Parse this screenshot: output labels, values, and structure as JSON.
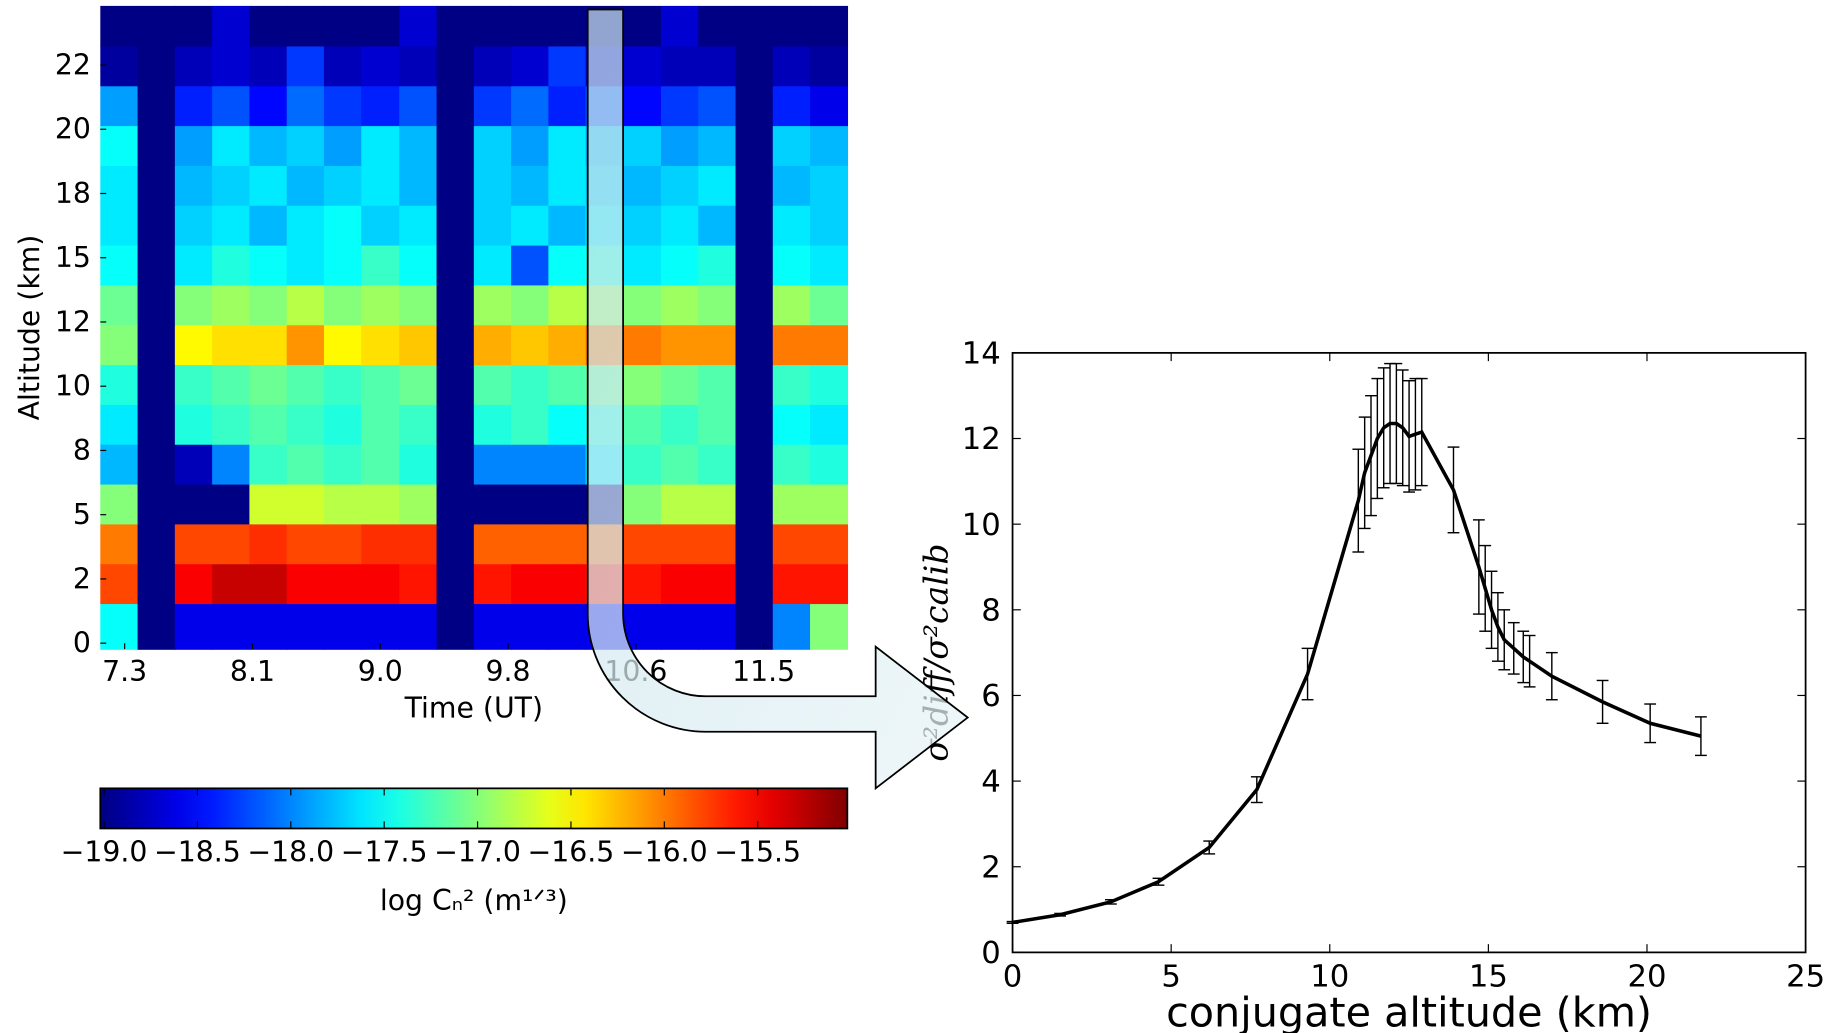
{
  "chart_data": [
    {
      "type": "heatmap",
      "xlabel": "Time (UT)",
      "ylabel": "Altitude (km)",
      "x": [
        7.24,
        7.49,
        7.73,
        7.98,
        8.22,
        8.47,
        8.71,
        8.96,
        9.21,
        9.45,
        9.7,
        9.94,
        10.19,
        10.43,
        10.68,
        10.93,
        11.17,
        11.42,
        11.66,
        11.91
      ],
      "y": [
        0.8,
        2.3,
        3.9,
        5.4,
        7.0,
        8.5,
        10.1,
        11.6,
        13.2,
        14.7,
        16.3,
        17.8,
        19.4,
        20.9,
        22.5,
        24.0
      ],
      "z": [
        [
          -17.5,
          -19,
          -18.6,
          -18.6,
          -18.6,
          -18.6,
          -18.6,
          -18.6,
          -18.6,
          -19,
          -18.6,
          -18.6,
          -18.6,
          -18.6,
          -18.6,
          -18.6,
          -18.6,
          -19,
          -18.0,
          -17.0
        ],
        [
          -15.8,
          -19,
          -15.5,
          -15.3,
          -15.3,
          -15.5,
          -15.5,
          -15.5,
          -15.6,
          -19,
          -15.6,
          -15.5,
          -15.5,
          -15.6,
          -15.6,
          -15.5,
          -15.5,
          -19,
          -15.6,
          -15.6
        ],
        [
          -16.0,
          -19,
          -15.8,
          -15.8,
          -15.7,
          -15.8,
          -15.8,
          -15.7,
          -15.7,
          -19,
          -15.9,
          -15.9,
          -15.9,
          -15.9,
          -15.8,
          -15.8,
          -15.8,
          -19,
          -15.8,
          -15.8
        ],
        [
          -17.0,
          -19,
          -19,
          -19,
          -16.7,
          -16.7,
          -16.8,
          -16.8,
          -16.9,
          -19,
          -19,
          -19,
          -19,
          -19,
          -17.0,
          -16.8,
          -16.8,
          -19,
          -16.9,
          -16.9
        ],
        [
          -17.8,
          -19,
          -18.8,
          -18.0,
          -17.3,
          -17.2,
          -17.3,
          -17.2,
          -17.4,
          -19,
          -18.0,
          -18.0,
          -18.0,
          -17.6,
          -17.3,
          -17.2,
          -17.3,
          -19,
          -17.3,
          -17.4
        ],
        [
          -17.6,
          -19,
          -17.4,
          -17.3,
          -17.2,
          -17.3,
          -17.4,
          -17.2,
          -17.3,
          -19,
          -17.4,
          -17.3,
          -17.5,
          -17.4,
          -17.2,
          -17.3,
          -17.2,
          -19,
          -17.5,
          -17.6
        ],
        [
          -17.4,
          -19,
          -17.3,
          -17.2,
          -17.1,
          -17.2,
          -17.3,
          -17.2,
          -17.1,
          -19,
          -17.2,
          -17.3,
          -17.2,
          -17.1,
          -17.0,
          -17.1,
          -17.2,
          -19,
          -17.3,
          -17.4
        ],
        [
          -17.0,
          -19,
          -16.5,
          -16.4,
          -16.4,
          -16.1,
          -16.5,
          -16.4,
          -16.3,
          -19,
          -16.2,
          -16.3,
          -16.2,
          -16.0,
          -16.0,
          -16.1,
          -16.1,
          -19,
          -16.0,
          -16.0
        ],
        [
          -17.1,
          -19,
          -17.0,
          -16.9,
          -17.0,
          -16.8,
          -17.0,
          -16.9,
          -17.0,
          -19,
          -16.9,
          -17.0,
          -16.8,
          -16.9,
          -17.0,
          -16.9,
          -17.0,
          -19,
          -16.9,
          -17.1
        ],
        [
          -17.5,
          -19,
          -17.6,
          -17.4,
          -17.5,
          -17.6,
          -17.5,
          -17.3,
          -17.5,
          -19,
          -17.6,
          -18.2,
          -17.5,
          -17.4,
          -17.6,
          -17.5,
          -17.4,
          -19,
          -17.5,
          -17.6
        ],
        [
          -17.6,
          -19,
          -17.7,
          -17.6,
          -17.8,
          -17.6,
          -17.5,
          -17.7,
          -17.6,
          -19,
          -17.7,
          -17.6,
          -17.8,
          -17.6,
          -17.7,
          -17.6,
          -17.8,
          -19,
          -17.6,
          -17.7
        ],
        [
          -17.6,
          -19,
          -17.8,
          -17.7,
          -17.6,
          -17.8,
          -17.7,
          -17.6,
          -17.8,
          -19,
          -17.7,
          -17.8,
          -17.6,
          -17.7,
          -17.8,
          -17.7,
          -17.6,
          -19,
          -17.8,
          -17.7
        ],
        [
          -17.5,
          -19,
          -17.9,
          -17.6,
          -17.8,
          -17.7,
          -17.9,
          -17.6,
          -17.8,
          -19,
          -17.7,
          -17.9,
          -17.6,
          -17.8,
          -17.7,
          -17.9,
          -17.8,
          -19,
          -17.7,
          -17.8
        ],
        [
          -17.9,
          -19,
          -18.4,
          -18.2,
          -18.5,
          -18.1,
          -18.3,
          -18.4,
          -18.2,
          -19,
          -18.3,
          -18.1,
          -18.4,
          -18.2,
          -18.5,
          -18.3,
          -18.2,
          -19,
          -18.4,
          -18.6
        ],
        [
          -18.9,
          -19,
          -18.8,
          -18.7,
          -18.8,
          -18.3,
          -18.8,
          -18.7,
          -18.8,
          -19,
          -18.8,
          -18.7,
          -18.3,
          -18.8,
          -18.7,
          -18.8,
          -18.8,
          -19,
          -18.8,
          -18.9
        ],
        [
          -19,
          -19,
          -19,
          -18.7,
          -19,
          -19,
          -19,
          -19,
          -18.7,
          -19,
          -19,
          -19,
          -19,
          -19,
          -19,
          -18.7,
          -19,
          -19,
          -19,
          -19
        ]
      ],
      "xlim": [
        7.12,
        12.03
      ],
      "ylim": [
        -0.23,
        24.8
      ],
      "xticks": [
        {
          "value": 7.28,
          "label": "7.3"
        },
        {
          "value": 8.12,
          "label": "8.1"
        },
        {
          "value": 8.96,
          "label": "9.0"
        },
        {
          "value": 9.8,
          "label": "9.8"
        },
        {
          "value": 10.64,
          "label": "10.6"
        },
        {
          "value": 11.48,
          "label": "11.5"
        }
      ],
      "yticks": [
        0,
        {
          "value": 2.5,
          "label": "2"
        },
        5,
        {
          "value": 7.5,
          "label": "8"
        },
        10,
        {
          "value": 12.5,
          "label": "12"
        },
        15,
        {
          "value": 17.5,
          "label": "18"
        },
        20,
        {
          "value": 22.5,
          "label": "22"
        }
      ],
      "colormap": "jet",
      "colorbar": {
        "label": "log Cₙ² (m¹ᐟ³)",
        "lim": [
          -19.02,
          -15.02
        ],
        "ticks": [
          {
            "value": -19,
            "label": "−19.0"
          },
          {
            "value": -18.5,
            "label": "−18.5"
          },
          {
            "value": -18,
            "label": "−18.0"
          },
          {
            "value": -17.5,
            "label": "−17.5"
          },
          {
            "value": -17,
            "label": "−17.0"
          },
          {
            "value": -16.5,
            "label": "−16.5"
          },
          {
            "value": -16,
            "label": "−16.0"
          },
          {
            "value": -15.5,
            "label": "−15.5"
          }
        ]
      }
    },
    {
      "type": "errorbar",
      "xlabel": "conjugate altitude (km)",
      "ylabel": "σ²diff/σ²calib",
      "x": [
        0,
        1.5,
        3.1,
        4.6,
        6.2,
        7.7,
        9.3,
        10.9,
        11.1,
        11.3,
        11.5,
        11.7,
        11.9,
        12.1,
        12.3,
        12.5,
        12.7,
        12.9,
        13.9,
        14.7,
        14.9,
        15.1,
        15.3,
        15.5,
        15.8,
        16.1,
        16.3,
        17.0,
        18.6,
        20.1,
        21.7
      ],
      "series": [
        {
          "color": "#000000",
          "values": [
            0.7,
            0.88,
            1.18,
            1.65,
            2.45,
            3.8,
            6.5,
            10.55,
            11.2,
            11.6,
            12.0,
            12.25,
            12.35,
            12.35,
            12.25,
            12.05,
            12.1,
            12.15,
            10.8,
            9.0,
            8.5,
            8.0,
            7.6,
            7.3,
            7.1,
            6.9,
            6.8,
            6.45,
            5.85,
            5.35,
            5.05
          ],
          "errors": [
            0.02,
            0.03,
            0.05,
            0.08,
            0.15,
            0.3,
            0.6,
            1.2,
            1.3,
            1.4,
            1.4,
            1.4,
            1.4,
            1.4,
            1.35,
            1.3,
            1.3,
            1.25,
            1.0,
            1.1,
            1.0,
            0.9,
            0.8,
            0.7,
            0.6,
            0.6,
            0.6,
            0.55,
            0.5,
            0.45,
            0.45
          ]
        }
      ],
      "xlim": [
        0,
        25
      ],
      "ylim": [
        0,
        14
      ],
      "xticks": [
        0,
        5,
        10,
        15,
        20,
        25
      ],
      "yticks": [
        0,
        2,
        4,
        6,
        8,
        10,
        12,
        14
      ]
    }
  ]
}
